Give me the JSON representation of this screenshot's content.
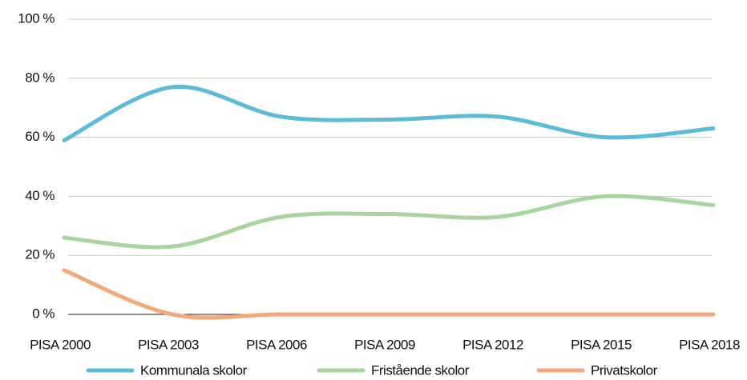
{
  "chart_data": {
    "type": "line",
    "categories": [
      "PISA 2000",
      "PISA 2003",
      "PISA 2006",
      "PISA 2009",
      "PISA 2012",
      "PISA 2015",
      "PISA 2018"
    ],
    "series": [
      {
        "name": "Kommunala skolor",
        "color": "#5bbcd8",
        "values": [
          59,
          77,
          67,
          66,
          67,
          60,
          63
        ]
      },
      {
        "name": "Fristående skolor",
        "color": "#a6d69d",
        "values": [
          26,
          23,
          33,
          34,
          33,
          40,
          37
        ]
      },
      {
        "name": "Privatskolor",
        "color": "#f5a97b",
        "values": [
          15,
          0,
          0,
          0,
          0,
          0,
          0
        ]
      }
    ],
    "ylim": [
      0,
      100
    ],
    "yticks": [
      {
        "value": 0,
        "label": "0 %"
      },
      {
        "value": 20,
        "label": "20 %"
      },
      {
        "value": 40,
        "label": "40 %"
      },
      {
        "value": 60,
        "label": "60 %"
      },
      {
        "value": 80,
        "label": "80 %"
      },
      {
        "value": 100,
        "label": "100 %"
      }
    ],
    "grid": true,
    "smooth": true,
    "legend": "bottom"
  }
}
